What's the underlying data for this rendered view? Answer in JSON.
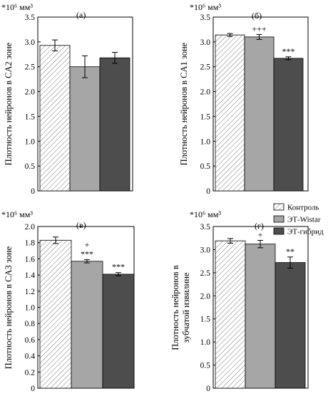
{
  "legend": {
    "items": [
      {
        "label": "Контроль",
        "pattern": "hatch",
        "color": "#ffffff"
      },
      {
        "label": "ЭТ-Wistar",
        "pattern": "solid",
        "color": "#a6a6a6"
      },
      {
        "label": "ЭТ-гибрид",
        "pattern": "solid",
        "color": "#4d4d4d"
      }
    ],
    "placement": "top-right of panel (г)"
  },
  "chart_data": [
    {
      "type": "bar",
      "panel_label": "(а)",
      "unit": "*10⁶ мм³",
      "ylabel": "Плотность нейронов в CA2 зоне",
      "ylim": [
        0,
        3.5
      ],
      "yticks": [
        "0",
        "0.5",
        "1.0",
        "1.5",
        "2.0",
        "2.5",
        "3.0",
        "3.5"
      ],
      "grid": false,
      "series": [
        {
          "name": "Контроль",
          "value": 2.93,
          "error": 0.11,
          "annotation": ""
        },
        {
          "name": "ЭТ-Wistar",
          "value": 2.5,
          "error": 0.22,
          "annotation": ""
        },
        {
          "name": "ЭТ-гибрид",
          "value": 2.68,
          "error": 0.11,
          "annotation": ""
        }
      ]
    },
    {
      "type": "bar",
      "panel_label": "(б)",
      "unit": "*10⁶ мм³",
      "ylabel": "Плотность нейронов в CA1 зоне",
      "ylim": [
        0,
        3.5
      ],
      "yticks": [
        "0",
        "0.5",
        "1.0",
        "1.5",
        "2.0",
        "2.5",
        "3.0",
        "3.5"
      ],
      "grid": false,
      "series": [
        {
          "name": "Контроль",
          "value": 3.14,
          "error": 0.03,
          "annotation": ""
        },
        {
          "name": "ЭТ-Wistar",
          "value": 3.1,
          "error": 0.05,
          "annotation": "+++"
        },
        {
          "name": "ЭТ-гибрид",
          "value": 2.67,
          "error": 0.03,
          "annotation": "***"
        }
      ]
    },
    {
      "type": "bar",
      "panel_label": "(в)",
      "unit": "*10⁶ мм³",
      "ylabel": "Плотность нейронов в CA3 зоне",
      "ylim": [
        0,
        2.0
      ],
      "yticks": [
        "0",
        "0.2",
        "0.4",
        "0.6",
        "0.8",
        "1.0",
        "1.2",
        "1.4",
        "1.6",
        "1.8",
        "2.0"
      ],
      "grid": false,
      "series": [
        {
          "name": "Контроль",
          "value": 1.83,
          "error": 0.04,
          "annotation": ""
        },
        {
          "name": "ЭТ-Wistar",
          "value": 1.57,
          "error": 0.02,
          "annotation": "+\n***"
        },
        {
          "name": "ЭТ-гибрид",
          "value": 1.41,
          "error": 0.02,
          "annotation": "***"
        }
      ]
    },
    {
      "type": "bar",
      "panel_label": "(г)",
      "unit": "*10⁶ мм³",
      "ylabel_lines": [
        "Плотность нейронов в",
        "зубчатой извилине"
      ],
      "ylim": [
        0,
        3.5
      ],
      "yticks": [
        "0",
        "0.5",
        "1.0",
        "1.5",
        "2.0",
        "2.5",
        "3.0",
        "3.5"
      ],
      "grid": false,
      "series": [
        {
          "name": "Контроль",
          "value": 3.19,
          "error": 0.05,
          "annotation": ""
        },
        {
          "name": "ЭТ-Wistar",
          "value": 3.12,
          "error": 0.08,
          "annotation": "+"
        },
        {
          "name": "ЭТ-гибрид",
          "value": 2.72,
          "error": 0.12,
          "annotation": "**"
        }
      ]
    }
  ]
}
